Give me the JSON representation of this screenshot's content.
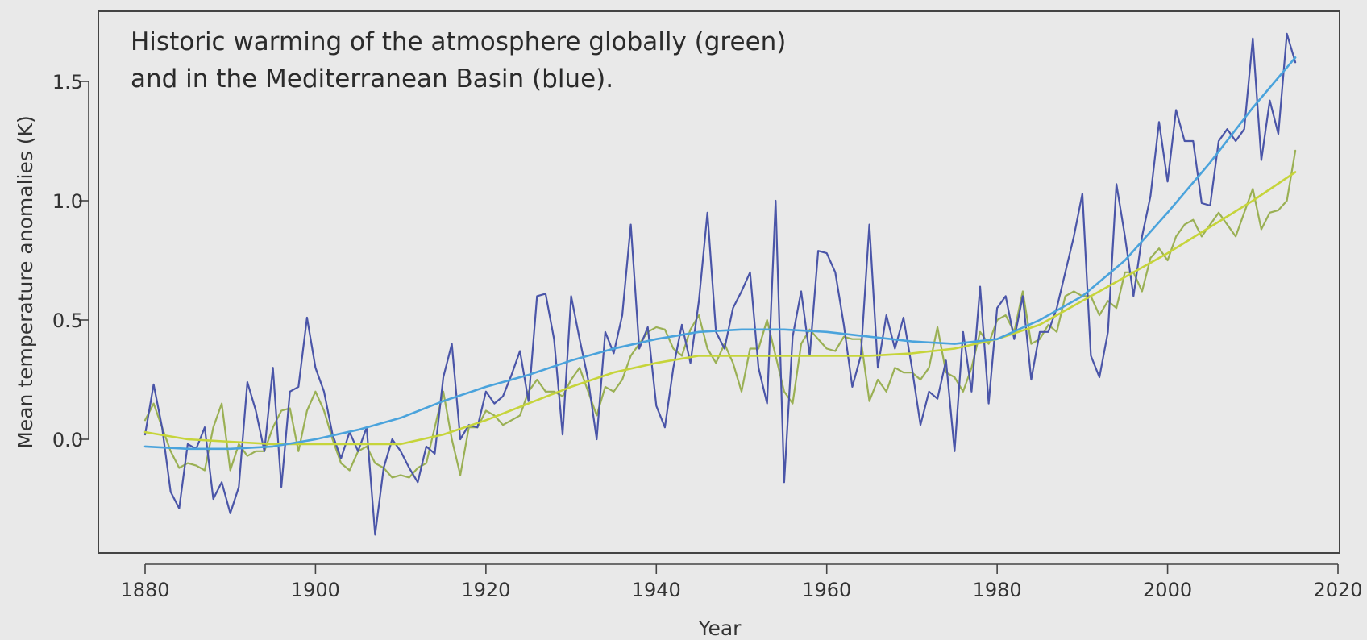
{
  "chart_data": {
    "type": "line",
    "annotation": [
      "Historic warming of the atmosphere globally (green)",
      "and in the Mediterranean Basin (blue)."
    ],
    "xlabel": "Year",
    "ylabel": "Mean temperature anomalies (K)",
    "xlim": [
      1874,
      2020
    ],
    "ylim": [
      -0.45,
      1.8
    ],
    "x_ticks": [
      1880,
      1900,
      1920,
      1940,
      1960,
      1980,
      2000,
      2020
    ],
    "y_ticks": [
      0.0,
      0.5,
      1.0,
      1.5
    ],
    "y_tick_labels": [
      "0.0",
      "0.5",
      "1.0",
      "1.5"
    ],
    "grid": false,
    "legend": "none",
    "colors": {
      "mediterranean_raw": "#4a55a8",
      "mediterranean_smooth": "#4aa3dc",
      "global_raw": "#9ab054",
      "global_smooth": "#c6d43a",
      "frame": "#444444"
    },
    "series": [
      {
        "x": [
          1880,
          1881,
          1882,
          1883,
          1884,
          1885,
          1886,
          1887,
          1888,
          1889,
          1890,
          1891,
          1892,
          1893,
          1894,
          1895,
          1896,
          1897,
          1898,
          1899,
          1900,
          1901,
          1902,
          1903,
          1904,
          1905,
          1906,
          1907,
          1908,
          1909,
          1910,
          1911,
          1912,
          1913,
          1914,
          1915,
          1916,
          1917,
          1918,
          1919,
          1920,
          1921,
          1922,
          1923,
          1924,
          1925,
          1926,
          1927,
          1928,
          1929,
          1930,
          1931,
          1932,
          1933,
          1934,
          1935,
          1936,
          1937,
          1938,
          1939,
          1940,
          1941,
          1942,
          1943,
          1944,
          1945,
          1946,
          1947,
          1948,
          1949,
          1950,
          1951,
          1952,
          1953,
          1954,
          1955,
          1956,
          1957,
          1958,
          1959,
          1960,
          1961,
          1962,
          1963,
          1964,
          1965,
          1966,
          1967,
          1968,
          1969,
          1970,
          1971,
          1972,
          1973,
          1974,
          1975,
          1976,
          1977,
          1978,
          1979,
          1980,
          1981,
          1982,
          1983,
          1984,
          1985,
          1986,
          1987,
          1988,
          1989,
          1990,
          1991,
          1992,
          1993,
          1994,
          1995,
          1996,
          1997,
          1998,
          1999,
          2000,
          2001,
          2002,
          2003,
          2004,
          2005,
          2006,
          2007,
          2008,
          2009,
          2010,
          2011,
          2012,
          2013,
          2014,
          2015
        ],
        "values": [
          0.02,
          0.23,
          0.05,
          -0.22,
          -0.29,
          -0.02,
          -0.04,
          0.05,
          -0.25,
          -0.18,
          -0.31,
          -0.2,
          0.24,
          0.12,
          -0.05,
          0.3,
          -0.2,
          0.2,
          0.22,
          0.51,
          0.3,
          0.2,
          0.02,
          -0.08,
          0.03,
          -0.05,
          0.05,
          -0.4,
          -0.12,
          0.0,
          -0.05,
          -0.12,
          -0.18,
          -0.03,
          -0.06,
          0.26,
          0.4,
          0.0,
          0.06,
          0.05,
          0.2,
          0.15,
          0.18,
          0.27,
          0.37,
          0.16,
          0.6,
          0.61,
          0.42,
          0.02,
          0.6,
          0.42,
          0.25,
          0.0,
          0.45,
          0.36,
          0.52,
          0.9,
          0.38,
          0.47,
          0.14,
          0.05,
          0.3,
          0.48,
          0.32,
          0.58,
          0.95,
          0.45,
          0.38,
          0.55,
          0.62,
          0.7,
          0.3,
          0.15,
          1.0,
          -0.18,
          0.43,
          0.62,
          0.35,
          0.79,
          0.78,
          0.7,
          0.48,
          0.22,
          0.35,
          0.9,
          0.3,
          0.52,
          0.38,
          0.51,
          0.3,
          0.06,
          0.2,
          0.17,
          0.33,
          -0.05,
          0.45,
          0.2,
          0.64,
          0.15,
          0.55,
          0.6,
          0.42,
          0.6,
          0.25,
          0.45,
          0.45,
          0.55,
          0.7,
          0.85,
          1.03,
          0.35,
          0.26,
          0.45,
          1.07,
          0.85,
          0.6,
          0.85,
          1.02,
          1.33,
          1.08,
          1.38,
          1.25,
          1.25,
          0.99,
          0.98,
          1.25,
          1.3,
          1.25,
          1.3,
          1.68,
          1.17,
          1.42,
          1.28,
          1.7,
          1.58
        ]
      },
      {
        "x": [
          1880,
          1881,
          1882,
          1883,
          1884,
          1885,
          1886,
          1887,
          1888,
          1889,
          1890,
          1891,
          1892,
          1893,
          1894,
          1895,
          1896,
          1897,
          1898,
          1899,
          1900,
          1901,
          1902,
          1903,
          1904,
          1905,
          1906,
          1907,
          1908,
          1909,
          1910,
          1911,
          1912,
          1913,
          1914,
          1915,
          1916,
          1917,
          1918,
          1919,
          1920,
          1921,
          1922,
          1923,
          1924,
          1925,
          1926,
          1927,
          1928,
          1929,
          1930,
          1931,
          1932,
          1933,
          1934,
          1935,
          1936,
          1937,
          1938,
          1939,
          1940,
          1941,
          1942,
          1943,
          1944,
          1945,
          1946,
          1947,
          1948,
          1949,
          1950,
          1951,
          1952,
          1953,
          1954,
          1955,
          1956,
          1957,
          1958,
          1959,
          1960,
          1961,
          1962,
          1963,
          1964,
          1965,
          1966,
          1967,
          1968,
          1969,
          1970,
          1971,
          1972,
          1973,
          1974,
          1975,
          1976,
          1977,
          1978,
          1979,
          1980,
          1981,
          1982,
          1983,
          1984,
          1985,
          1986,
          1987,
          1988,
          1989,
          1990,
          1991,
          1992,
          1993,
          1994,
          1995,
          1996,
          1997,
          1998,
          1999,
          2000,
          2001,
          2002,
          2003,
          2004,
          2005,
          2006,
          2007,
          2008,
          2009,
          2010,
          2011,
          2012,
          2013,
          2014,
          2015
        ],
        "values": [
          0.08,
          0.15,
          0.05,
          -0.05,
          -0.12,
          -0.1,
          -0.11,
          -0.13,
          0.05,
          0.15,
          -0.13,
          -0.02,
          -0.07,
          -0.05,
          -0.05,
          0.05,
          0.12,
          0.13,
          -0.05,
          0.12,
          0.2,
          0.12,
          0.0,
          -0.1,
          -0.13,
          -0.05,
          -0.03,
          -0.1,
          -0.12,
          -0.16,
          -0.15,
          -0.16,
          -0.12,
          -0.1,
          0.05,
          0.2,
          0.0,
          -0.15,
          0.05,
          0.05,
          0.12,
          0.1,
          0.06,
          0.08,
          0.1,
          0.2,
          0.25,
          0.2,
          0.2,
          0.18,
          0.25,
          0.3,
          0.2,
          0.1,
          0.22,
          0.2,
          0.25,
          0.35,
          0.4,
          0.45,
          0.47,
          0.46,
          0.38,
          0.35,
          0.46,
          0.52,
          0.38,
          0.32,
          0.4,
          0.32,
          0.2,
          0.38,
          0.38,
          0.5,
          0.35,
          0.2,
          0.15,
          0.4,
          0.46,
          0.42,
          0.38,
          0.37,
          0.43,
          0.42,
          0.42,
          0.16,
          0.25,
          0.2,
          0.3,
          0.28,
          0.28,
          0.25,
          0.3,
          0.47,
          0.28,
          0.26,
          0.2,
          0.3,
          0.45,
          0.4,
          0.5,
          0.52,
          0.45,
          0.62,
          0.4,
          0.42,
          0.48,
          0.45,
          0.6,
          0.62,
          0.6,
          0.6,
          0.52,
          0.58,
          0.55,
          0.7,
          0.7,
          0.62,
          0.76,
          0.8,
          0.75,
          0.85,
          0.9,
          0.92,
          0.85,
          0.9,
          0.95,
          0.9,
          0.85,
          0.95,
          1.05,
          0.88,
          0.95,
          0.96,
          1.0,
          1.21
        ]
      },
      {
        "x": [
          1880,
          1885,
          1890,
          1895,
          1900,
          1905,
          1910,
          1915,
          1920,
          1925,
          1930,
          1935,
          1940,
          1945,
          1950,
          1955,
          1960,
          1965,
          1970,
          1975,
          1980,
          1985,
          1990,
          1995,
          2000,
          2005,
          2010,
          2015
        ],
        "values": [
          -0.03,
          -0.04,
          -0.04,
          -0.03,
          0.0,
          0.04,
          0.09,
          0.16,
          0.22,
          0.27,
          0.33,
          0.38,
          0.42,
          0.45,
          0.46,
          0.46,
          0.45,
          0.43,
          0.41,
          0.4,
          0.42,
          0.5,
          0.6,
          0.75,
          0.95,
          1.16,
          1.39,
          1.6
        ]
      },
      {
        "x": [
          1880,
          1885,
          1890,
          1895,
          1900,
          1905,
          1910,
          1915,
          1920,
          1925,
          1930,
          1935,
          1940,
          1945,
          1950,
          1955,
          1960,
          1965,
          1970,
          1975,
          1980,
          1985,
          1990,
          1995,
          2000,
          2005,
          2010,
          2015
        ],
        "values": [
          0.03,
          0.0,
          -0.01,
          -0.02,
          -0.02,
          -0.02,
          -0.02,
          0.02,
          0.08,
          0.15,
          0.22,
          0.28,
          0.32,
          0.35,
          0.35,
          0.35,
          0.35,
          0.35,
          0.36,
          0.38,
          0.42,
          0.48,
          0.58,
          0.68,
          0.78,
          0.89,
          1.0,
          1.12
        ]
      }
    ]
  }
}
